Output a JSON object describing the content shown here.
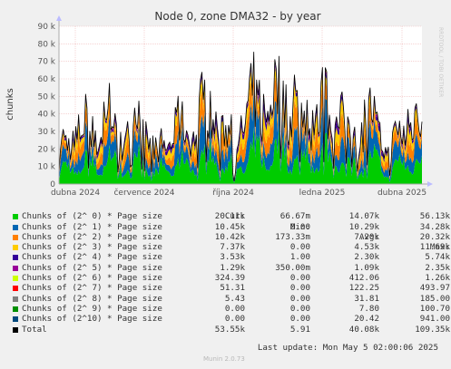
{
  "chart_data": {
    "type": "area",
    "stacked": true,
    "title": "Node 0, zone DMA32 - by year",
    "ylabel": "chunks",
    "ylim": [
      0,
      90000
    ],
    "yticks": [
      0,
      10000,
      20000,
      30000,
      40000,
      50000,
      60000,
      70000,
      80000,
      90000
    ],
    "ytick_labels": [
      "0",
      "10 k",
      "20 k",
      "30 k",
      "40 k",
      "50 k",
      "60 k",
      "70 k",
      "80 k",
      "90 k"
    ],
    "xtick_labels": [
      "dubna 2024",
      "července 2024",
      "října 2024",
      "ledna 2025",
      "dubna 2025"
    ],
    "grid": true,
    "watermark": "RRDTOOL / TOBI OETIKER",
    "background": "#f0f0f0",
    "plot_background": "#ffffff",
    "colors": [
      "#00cc00",
      "#0066b3",
      "#ff8000",
      "#ffcc00",
      "#330099",
      "#990099",
      "#ccff00",
      "#ff0000",
      "#808080",
      "#008f00",
      "#00487d",
      "#000000"
    ],
    "series": [
      {
        "name": "Chunks of (2^ 0) * Page size",
        "cur": "20.11k",
        "min": "66.67m",
        "avg": "14.07k",
        "max": "56.13k",
        "typical": 14070
      },
      {
        "name": "Chunks of (2^ 1) * Page size",
        "cur": "10.45k",
        "min": "0.00",
        "avg": "10.29k",
        "max": "34.28k",
        "typical": 10290
      },
      {
        "name": "Chunks of (2^ 2) * Page size",
        "cur": "10.42k",
        "min": "173.33m",
        "avg": "7.20k",
        "max": "20.32k",
        "typical": 7200
      },
      {
        "name": "Chunks of (2^ 3) * Page size",
        "cur": "7.37k",
        "min": "0.00",
        "avg": "4.53k",
        "max": "11.69k",
        "typical": 4530
      },
      {
        "name": "Chunks of (2^ 4) * Page size",
        "cur": "3.53k",
        "min": "1.00",
        "avg": "2.30k",
        "max": "5.74k",
        "typical": 2300
      },
      {
        "name": "Chunks of (2^ 5) * Page size",
        "cur": "1.29k",
        "min": "350.00m",
        "avg": "1.09k",
        "max": "2.35k",
        "typical": 1090
      },
      {
        "name": "Chunks of (2^ 6) * Page size",
        "cur": "324.39",
        "min": "0.00",
        "avg": "412.06",
        "max": "1.26k",
        "typical": 412
      },
      {
        "name": "Chunks of (2^ 7) * Page size",
        "cur": "51.31",
        "min": "0.00",
        "avg": "122.25",
        "max": "493.97",
        "typical": 122
      },
      {
        "name": "Chunks of (2^ 8) * Page size",
        "cur": "5.43",
        "min": "0.00",
        "avg": "31.81",
        "max": "185.00",
        "typical": 32
      },
      {
        "name": "Chunks of (2^ 9) * Page size",
        "cur": "0.00",
        "min": "0.00",
        "avg": "7.80",
        "max": "100.70",
        "typical": 8
      },
      {
        "name": "Chunks of (2^10) * Page size",
        "cur": "0.00",
        "min": "0.00",
        "avg": "20.42",
        "max": "941.00",
        "typical": 20
      },
      {
        "name": "Total",
        "cur": "53.55k",
        "min": "5.91",
        "avg": "40.08k",
        "max": "109.35k"
      }
    ],
    "total_profile": {
      "x_fraction": [
        0.0,
        0.03,
        0.06,
        0.09,
        0.12,
        0.15,
        0.18,
        0.21,
        0.24,
        0.27,
        0.3,
        0.33,
        0.36,
        0.39,
        0.42,
        0.45,
        0.475,
        0.48,
        0.5,
        0.53,
        0.56,
        0.59,
        0.62,
        0.65,
        0.68,
        0.71,
        0.74,
        0.77,
        0.8,
        0.83,
        0.86,
        0.89,
        0.91,
        0.93,
        0.96,
        1.0
      ],
      "values": [
        28000,
        34000,
        40000,
        38000,
        42000,
        45000,
        30000,
        52000,
        46000,
        20000,
        38000,
        40000,
        42000,
        50000,
        55000,
        40000,
        32000,
        2000,
        45000,
        58000,
        60000,
        65000,
        68000,
        55000,
        48000,
        50000,
        52000,
        55000,
        45000,
        44000,
        50000,
        40000,
        22000,
        35000,
        50000,
        48000
      ]
    }
  },
  "legend_header": {
    "cur": "Cur:",
    "min": "Min:",
    "avg": "Avg:",
    "max": "Max:"
  },
  "last_update": "Last update: Mon May  5 02:00:06 2025",
  "generator": "Munin 2.0.73"
}
